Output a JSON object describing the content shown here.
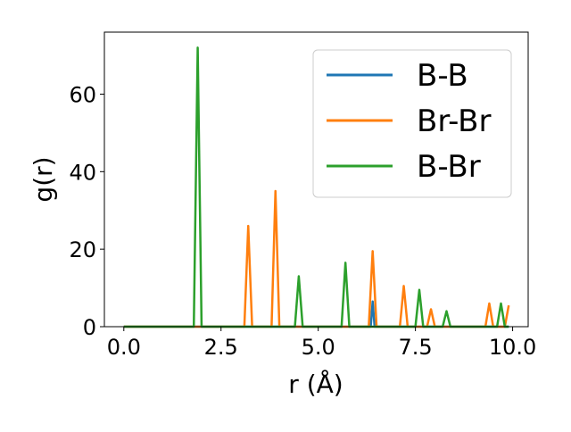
{
  "chart_data": {
    "type": "line",
    "xlabel": "r (Å)",
    "ylabel": "g(r)",
    "xlim": [
      -0.5,
      10.4
    ],
    "ylim": [
      0,
      76
    ],
    "xticks": [
      0.0,
      2.5,
      5.0,
      7.5,
      10.0
    ],
    "xtick_labels": [
      "0.0",
      "2.5",
      "5.0",
      "7.5",
      "10.0"
    ],
    "yticks": [
      0,
      20,
      40,
      60
    ],
    "ytick_labels": [
      "0",
      "20",
      "40",
      "60"
    ],
    "grid": false,
    "legend_position": "top-right",
    "series": [
      {
        "name": "B-B",
        "color": "#1f77b4",
        "x": [
          0.0,
          6.35,
          6.4,
          6.45,
          9.9
        ],
        "y": [
          0,
          0,
          6.5,
          0,
          0
        ]
      },
      {
        "name": "Br-Br",
        "color": "#ff7f0e",
        "x": [
          0.0,
          3.1,
          3.2,
          3.3,
          3.8,
          3.9,
          4.0,
          6.3,
          6.4,
          6.5,
          7.1,
          7.2,
          7.3,
          7.8,
          7.9,
          8.0,
          9.3,
          9.4,
          9.5,
          9.8,
          9.9
        ],
        "y": [
          0,
          0,
          26,
          0,
          0,
          35,
          0,
          0,
          19.5,
          0,
          0,
          10.5,
          0,
          0,
          4.5,
          0,
          0,
          6,
          0,
          0,
          5.5
        ]
      },
      {
        "name": "B-Br",
        "color": "#2ca02c",
        "x": [
          0.0,
          1.8,
          1.9,
          2.0,
          4.4,
          4.5,
          4.6,
          5.6,
          5.7,
          5.8,
          7.5,
          7.6,
          7.7,
          8.2,
          8.3,
          8.4,
          9.6,
          9.7,
          9.8,
          9.9
        ],
        "y": [
          0,
          0,
          72,
          0,
          0,
          13,
          0,
          0,
          16.5,
          0,
          0,
          9.5,
          0,
          0,
          4,
          0,
          0,
          6,
          0,
          0
        ]
      }
    ]
  }
}
